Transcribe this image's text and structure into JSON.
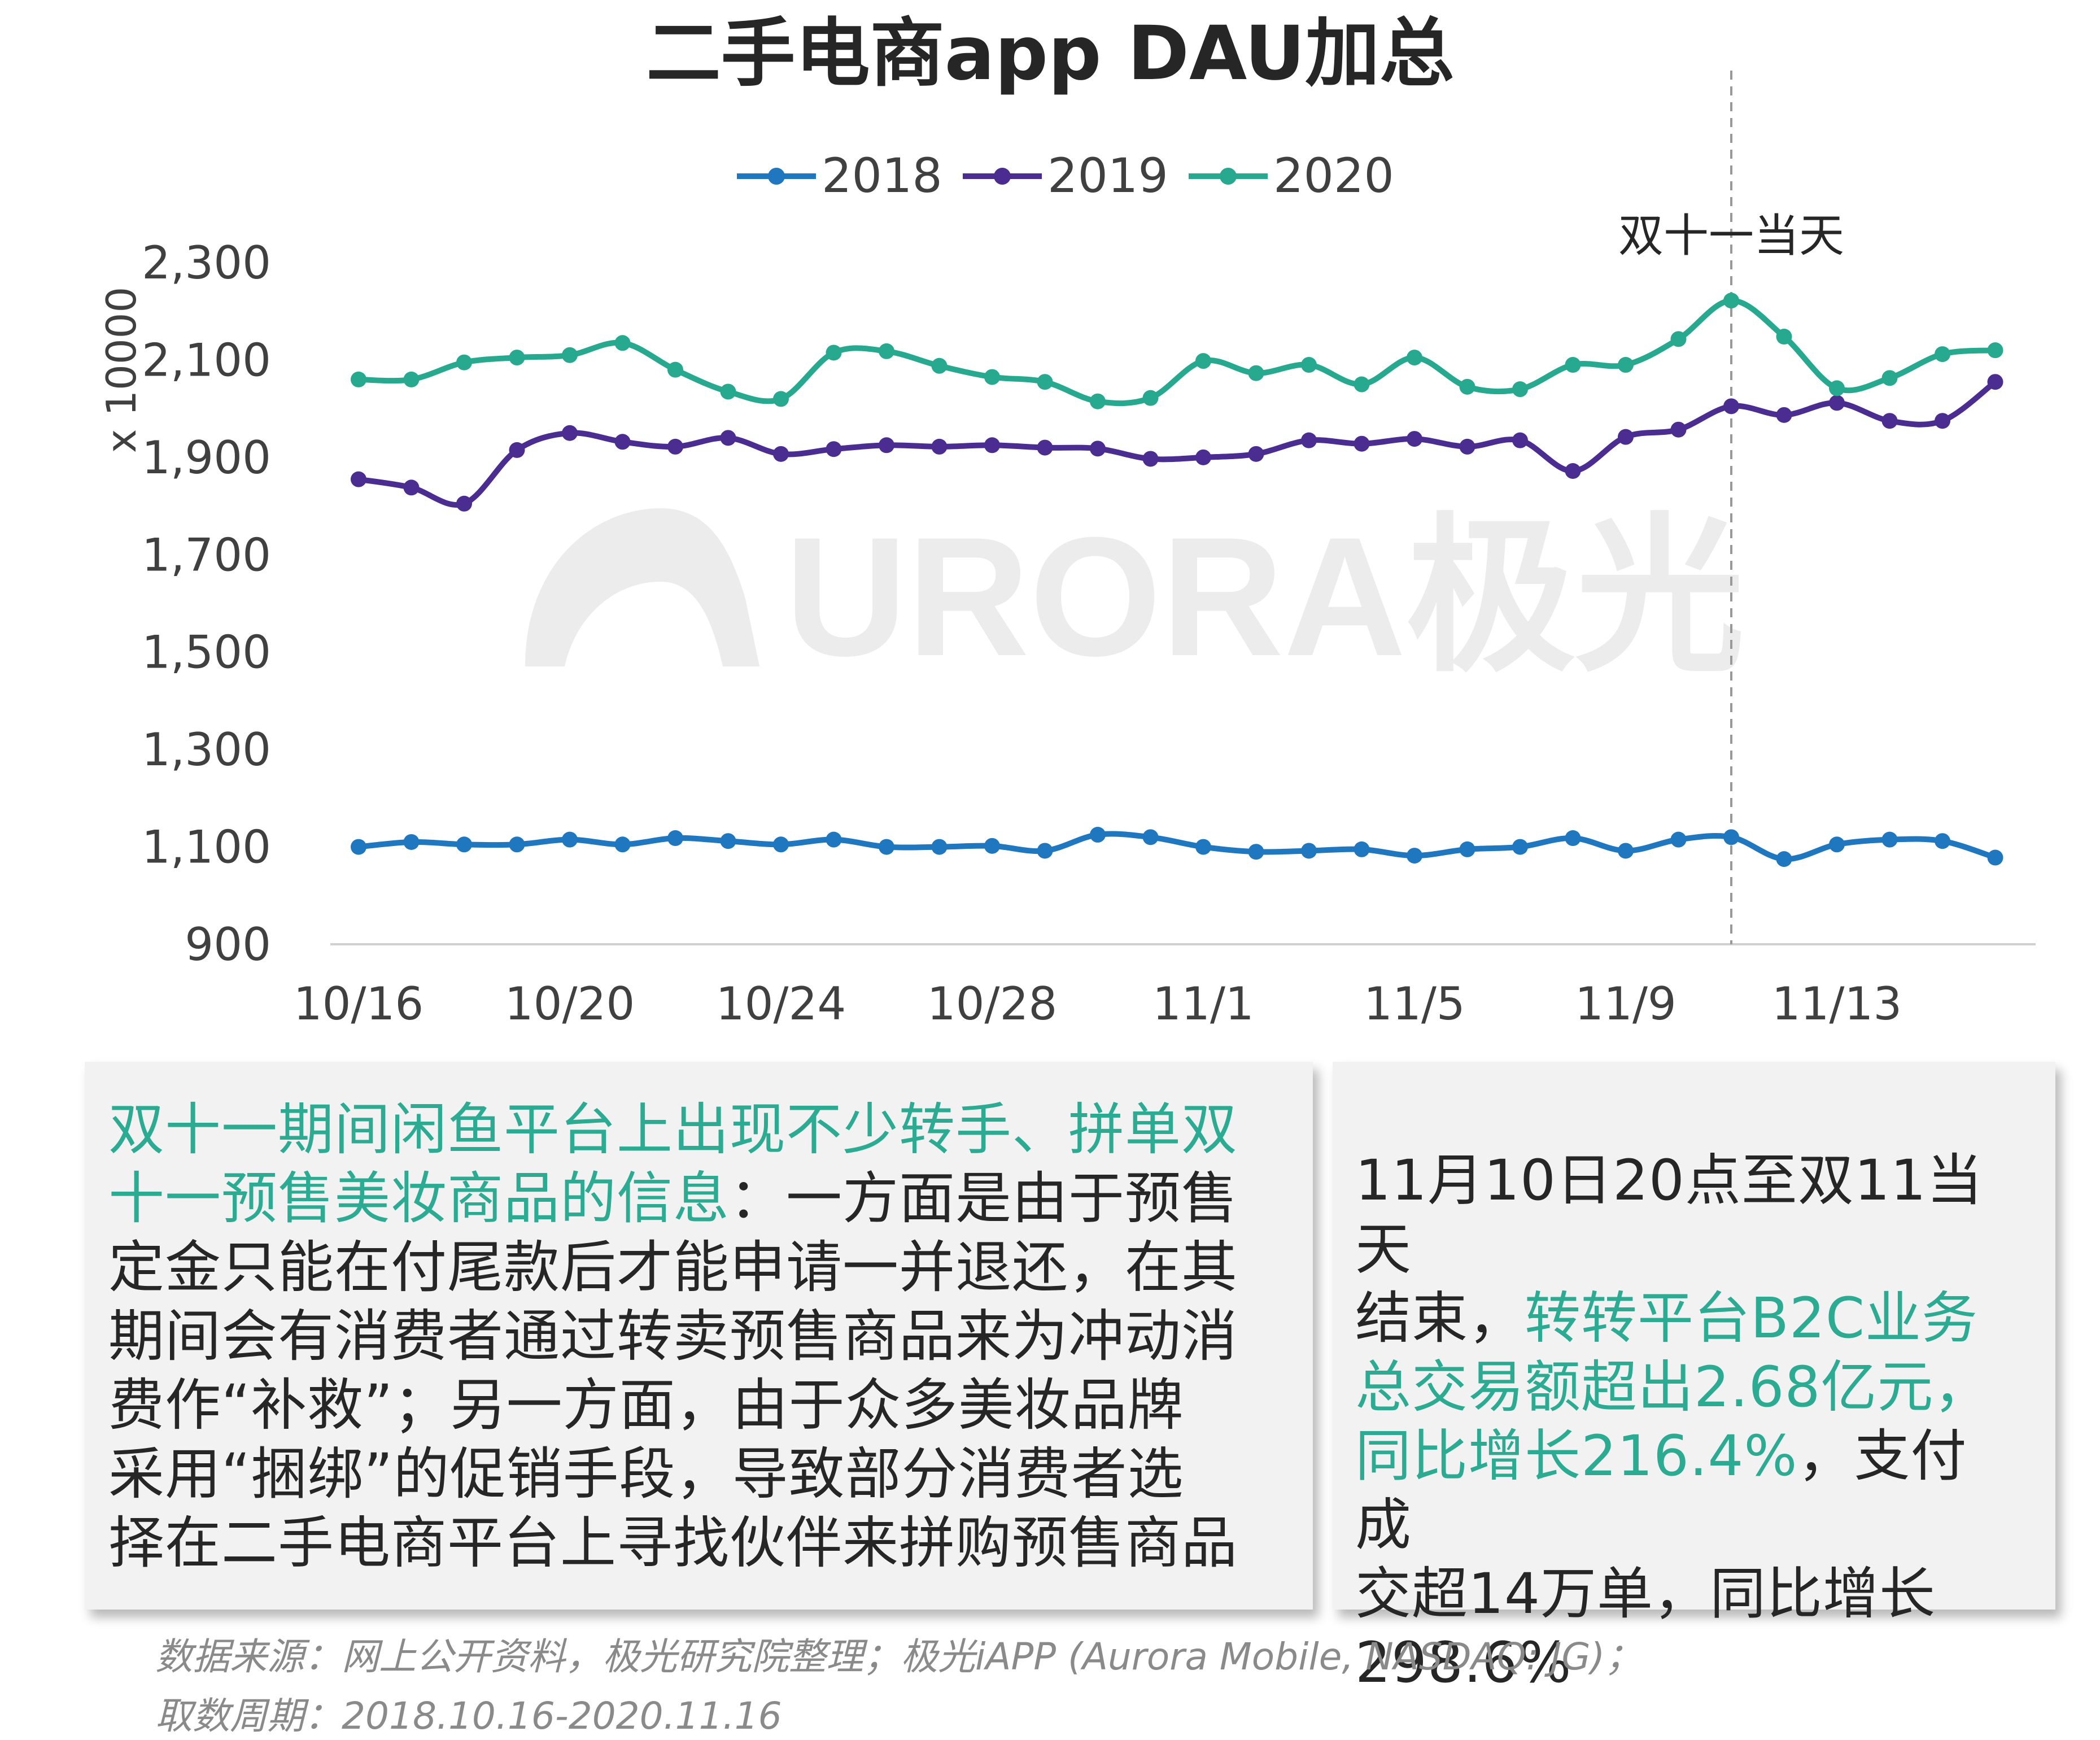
{
  "chart_data": {
    "type": "line",
    "title": "二手电商app DAU加总",
    "ylabel": "x 10000",
    "xlabel": "",
    "ylim": [
      900,
      2300
    ],
    "yticks": [
      "2,300",
      "2,100",
      "1,900",
      "1,700",
      "1,500",
      "1,300",
      "1,100",
      "900"
    ],
    "ytick_values": [
      2300,
      2100,
      1900,
      1700,
      1500,
      1300,
      1100,
      900
    ],
    "xtick_labels": [
      "10/16",
      "10/20",
      "10/24",
      "10/28",
      "11/1",
      "11/5",
      "11/9",
      "11/13"
    ],
    "xtick_index": [
      0,
      4,
      8,
      12,
      16,
      20,
      24,
      28
    ],
    "categories": [
      "10/16",
      "10/17",
      "10/18",
      "10/19",
      "10/20",
      "10/21",
      "10/22",
      "10/23",
      "10/24",
      "10/25",
      "10/26",
      "10/27",
      "10/28",
      "10/29",
      "10/30",
      "10/31",
      "11/1",
      "11/2",
      "11/3",
      "11/4",
      "11/5",
      "11/6",
      "11/7",
      "11/8",
      "11/9",
      "11/10",
      "11/11",
      "11/12",
      "11/13",
      "11/14",
      "11/15",
      "11/16"
    ],
    "legend_position": "top-center",
    "grid": false,
    "series": [
      {
        "name": "2018",
        "color": "#1f77c0",
        "values": [
          1100,
          1110,
          1105,
          1105,
          1115,
          1105,
          1118,
          1112,
          1105,
          1115,
          1100,
          1100,
          1102,
          1092,
          1125,
          1120,
          1100,
          1090,
          1092,
          1095,
          1082,
          1095,
          1100,
          1118,
          1092,
          1115,
          1120,
          1075,
          1105,
          1115,
          1112,
          1078
        ]
      },
      {
        "name": "2019",
        "color": "#4b2d91",
        "values": [
          1855,
          1838,
          1805,
          1915,
          1950,
          1932,
          1922,
          1940,
          1907,
          1917,
          1925,
          1922,
          1925,
          1920,
          1918,
          1897,
          1900,
          1907,
          1935,
          1928,
          1938,
          1922,
          1935,
          1872,
          1942,
          1957,
          2005,
          1987,
          2012,
          1975,
          1975,
          2055
        ]
      },
      {
        "name": "2020",
        "color": "#26a98f",
        "values": [
          2060,
          2060,
          2095,
          2105,
          2110,
          2135,
          2080,
          2035,
          2020,
          2115,
          2118,
          2088,
          2065,
          2055,
          2015,
          2022,
          2098,
          2073,
          2090,
          2050,
          2105,
          2045,
          2040,
          2090,
          2090,
          2143,
          2222,
          2148,
          2042,
          2063,
          2112,
          2120
        ]
      }
    ],
    "annotations": [
      {
        "text": "双十一当天",
        "x": "11/11"
      }
    ]
  },
  "watermark": "URORA极光",
  "left_box": {
    "lines": [
      {
        "hl": "双十一期间闲鱼平台上出现不少转手、拼单双",
        "rest": ""
      },
      {
        "hl": "十一预售美妆商品的信息",
        "rest": "：一方面是由于预售"
      },
      {
        "hl": "",
        "rest": "定金只能在付尾款后才能申请一并退还，在其"
      },
      {
        "hl": "",
        "rest": "期间会有消费者通过转卖预售商品来为冲动消"
      },
      {
        "hl": "",
        "rest": "费作“补救”；另一方面，由于众多美妆品牌"
      },
      {
        "hl": "",
        "rest": "采用“捆绑”的促销手段，导致部分消费者选"
      },
      {
        "hl": "",
        "rest": "择在二手电商平台上寻找伙伴来拼购预售商品"
      }
    ]
  },
  "right_box": {
    "lines": [
      {
        "pre": "11月10日20点至双11当天",
        "hl": "",
        "post": ""
      },
      {
        "pre": "结束，",
        "hl": "转转平台B2C业务",
        "post": ""
      },
      {
        "pre": "",
        "hl": "总交易额超出2.68亿元，",
        "post": ""
      },
      {
        "pre": "",
        "hl": "同比增长216.4%",
        "post": "，支付成"
      },
      {
        "pre": "交超14万单，同比增长",
        "hl": "",
        "post": ""
      },
      {
        "pre": "298.6%",
        "hl": "",
        "post": ""
      }
    ]
  },
  "footnote": {
    "line1": "数据来源：网上公开资料，极光研究院整理；极光iAPP (Aurora Mobile, NASDAQ: JG)；",
    "line2": "取数周期：2018.10.16-2020.11.16"
  }
}
